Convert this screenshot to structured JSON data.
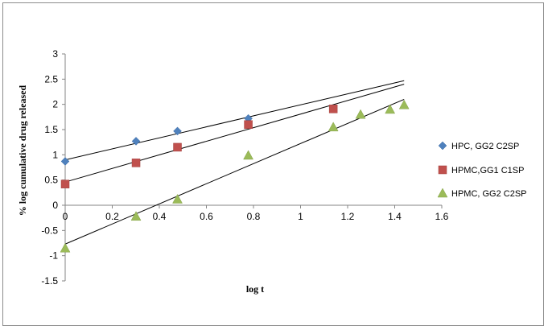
{
  "chart_data": {
    "type": "scatter",
    "title": "",
    "xlabel": "log t",
    "ylabel": "% log cumulative drug released",
    "xlim": [
      0,
      1.6
    ],
    "ylim": [
      -1.5,
      3
    ],
    "x_ticks": [
      "0",
      "0.2",
      "0.4",
      "0.6",
      "0.8",
      "1",
      "1.2",
      "1.4",
      "1.6"
    ],
    "y_ticks": [
      "3",
      "2.5",
      "2",
      "1.5",
      "1",
      "0.5",
      "0",
      "-0.5",
      "-1",
      "-1.5"
    ],
    "grid": false,
    "legend_position": "right",
    "series": [
      {
        "name": "HPC, GG2 C2SP",
        "marker": "diamond",
        "color": "#4f81bd",
        "x": [
          0,
          0.301,
          0.477,
          0.778
        ],
        "y": [
          0.87,
          1.27,
          1.47,
          1.72
        ],
        "trendline": {
          "x": [
            0,
            1.44
          ],
          "y": [
            0.9,
            2.47
          ]
        }
      },
      {
        "name": "HPMC,GG1 C1SP",
        "marker": "square",
        "color": "#c0504d",
        "x": [
          0,
          0.301,
          0.477,
          0.778,
          1.139
        ],
        "y": [
          0.42,
          0.84,
          1.15,
          1.6,
          1.91
        ],
        "trendline": {
          "x": [
            0,
            1.44
          ],
          "y": [
            0.46,
            2.4
          ]
        }
      },
      {
        "name": "HPMC, GG2 C2SP",
        "marker": "triangle",
        "color": "#9bbb59",
        "x": [
          0,
          0.301,
          0.477,
          0.778,
          1.139,
          1.255,
          1.38,
          1.44
        ],
        "y": [
          -0.85,
          -0.22,
          0.12,
          0.99,
          1.55,
          1.8,
          1.9,
          1.99
        ],
        "trendline": {
          "x": [
            0,
            1.44
          ],
          "y": [
            -0.77,
            2.1
          ]
        }
      }
    ]
  }
}
